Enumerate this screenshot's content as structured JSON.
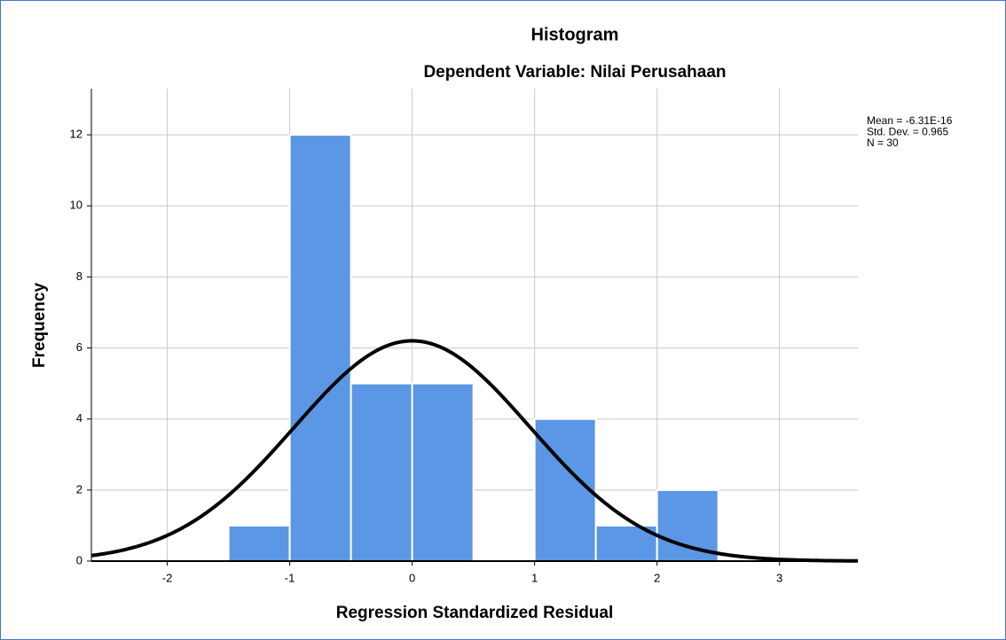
{
  "chart_data": {
    "type": "histogram",
    "title": "Histogram",
    "subtitle": "Dependent Variable: Nilai Perusahaan",
    "x_label": "Regression Standardized Residual",
    "y_label": "Frequency",
    "bins": [
      -1.5,
      -1,
      -0.5,
      0,
      0.5,
      1,
      1.5,
      2,
      2.5
    ],
    "counts": [
      1,
      12,
      5,
      5,
      0,
      4,
      1,
      2
    ],
    "color": "#5b97e4",
    "curve": {
      "mean": -6.31e-16,
      "std_dev": 0.965,
      "n": 30,
      "color": "#000000"
    },
    "annotations": [
      "Mean = -6.31E-16",
      "Std. Dev. = 0.965",
      "N = 30"
    ],
    "xlim": [
      -2.62,
      3.64
    ],
    "ylim": [
      0,
      13.3
    ],
    "xticks": [
      -2,
      -1,
      0,
      1,
      2,
      3
    ],
    "yticks": [
      0,
      2,
      4,
      6,
      8,
      10,
      12
    ],
    "grid": true
  }
}
